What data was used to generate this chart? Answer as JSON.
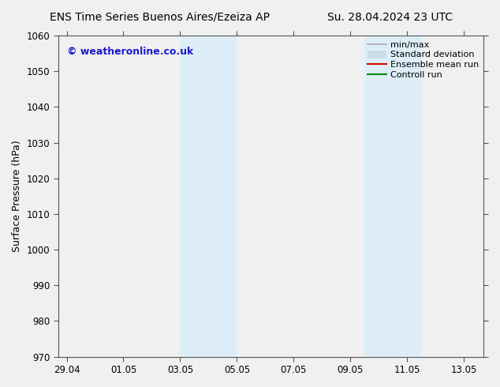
{
  "title_left": "ENS Time Series Buenos Aires/Ezeiza AP",
  "title_right": "Su. 28.04.2024 23 UTC",
  "ylabel": "Surface Pressure (hPa)",
  "ylim": [
    970,
    1060
  ],
  "yticks": [
    970,
    980,
    990,
    1000,
    1010,
    1020,
    1030,
    1040,
    1050,
    1060
  ],
  "xlim_start": -0.3,
  "xlim_end": 14.7,
  "xtick_positions": [
    0,
    2,
    4,
    6,
    8,
    10,
    12,
    14
  ],
  "xtick_labels": [
    "29.04",
    "01.05",
    "03.05",
    "05.05",
    "07.05",
    "09.05",
    "11.05",
    "13.05"
  ],
  "shaded_bands": [
    {
      "x_start": 4.0,
      "x_end": 6.0
    },
    {
      "x_start": 10.5,
      "x_end": 12.5
    }
  ],
  "shaded_color": "#ddeef8",
  "background_color": "#f0f0f0",
  "plot_bg_color": "#f0f0f0",
  "watermark_text": "© weatheronline.co.uk",
  "watermark_color": "#1a1acc",
  "legend_items": [
    {
      "label": "min/max",
      "color": "#aaaaaa",
      "lw": 1.2,
      "style": "line"
    },
    {
      "label": "Standard deviation",
      "color": "#c8dde8",
      "lw": 7,
      "style": "band"
    },
    {
      "label": "Ensemble mean run",
      "color": "#dd0000",
      "lw": 1.5,
      "style": "line"
    },
    {
      "label": "Controll run",
      "color": "#008800",
      "lw": 1.5,
      "style": "line"
    }
  ],
  "title_fontsize": 10,
  "tick_fontsize": 8.5,
  "ylabel_fontsize": 9,
  "watermark_fontsize": 9,
  "legend_fontsize": 8
}
